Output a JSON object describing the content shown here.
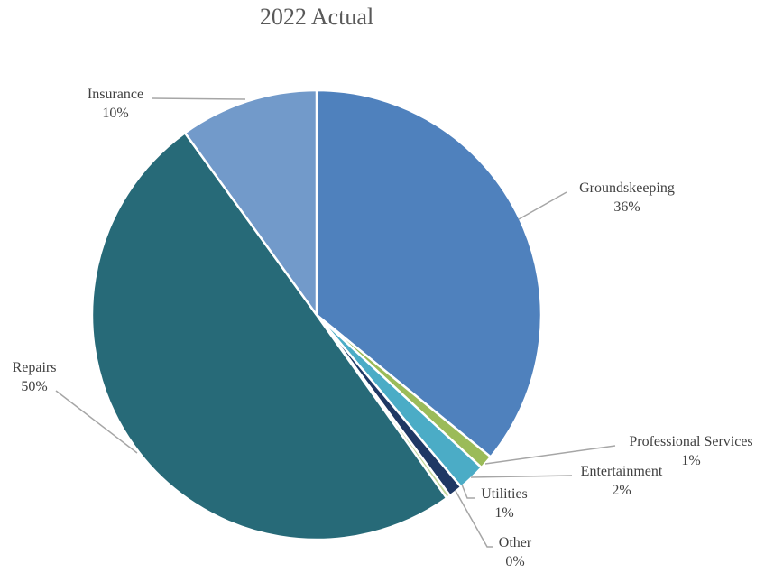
{
  "chart_data": {
    "type": "pie",
    "title": "2022 Actual",
    "slices": [
      {
        "name": "Groundskeeping",
        "value": 36,
        "label": "36%",
        "color": "#4f81bd"
      },
      {
        "name": "Professional Services",
        "value": 1,
        "label": "1%",
        "color": "#9bbb59"
      },
      {
        "name": "Entertainment",
        "value": 2,
        "label": "2%",
        "color": "#4bacc6"
      },
      {
        "name": "Utilities",
        "value": 1,
        "label": "1%",
        "color": "#1f3864"
      },
      {
        "name": "Other",
        "value": 0.3,
        "label": "0%",
        "color": "#c3d69b"
      },
      {
        "name": "Repairs",
        "value": 50,
        "label": "50%",
        "color": "#276a78"
      },
      {
        "name": "Insurance",
        "value": 10,
        "label": "10%",
        "color": "#729aca"
      }
    ],
    "leader_line_color": "#a6a6a6",
    "legend": "none"
  }
}
